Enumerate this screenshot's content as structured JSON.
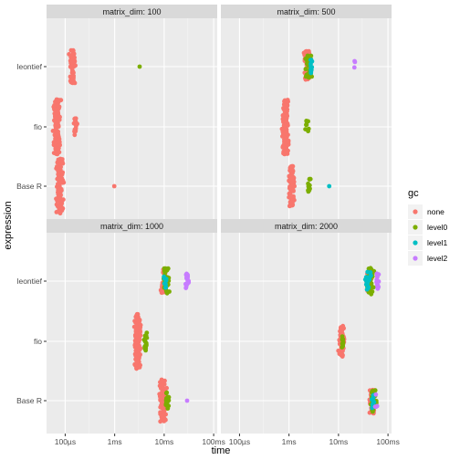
{
  "chart_data": {
    "type": "beeswarm",
    "xlabel": "time",
    "ylabel": "expression",
    "x_scale": "log10",
    "x_ticks": [
      {
        "value": 0.0001,
        "label": "100µs"
      },
      {
        "value": 0.001,
        "label": "1ms"
      },
      {
        "value": 0.01,
        "label": "10ms"
      },
      {
        "value": 0.1,
        "label": "100ms"
      }
    ],
    "categories": [
      "leontief",
      "fio",
      "Base R"
    ],
    "legend": {
      "title": "gc",
      "position": "right",
      "entries": [
        {
          "name": "none",
          "color": "#F8766D"
        },
        {
          "name": "level0",
          "color": "#7CAE00"
        },
        {
          "name": "level1",
          "color": "#00BFC4"
        },
        {
          "name": "level2",
          "color": "#C77CFF"
        }
      ]
    },
    "panels": [
      {
        "strip": "matrix_dim: 100",
        "groups": [
          {
            "category": "leontief",
            "gc": "none",
            "center": 0.00014,
            "count": 60
          },
          {
            "category": "leontief",
            "gc": "level0",
            "center": 0.0032,
            "count": 1
          },
          {
            "category": "fio",
            "gc": "none",
            "center": 6.8e-05,
            "count": 140
          },
          {
            "category": "fio",
            "gc": "none",
            "center": 0.00016,
            "count": 18
          },
          {
            "category": "Base R",
            "gc": "none",
            "center": 7.8e-05,
            "count": 120
          },
          {
            "category": "Base R",
            "gc": "none",
            "center": 0.00098,
            "count": 1
          }
        ]
      },
      {
        "strip": "matrix_dim: 500",
        "groups": [
          {
            "category": "leontief",
            "gc": "none",
            "center": 0.0023,
            "count": 55
          },
          {
            "category": "leontief",
            "gc": "level0",
            "center": 0.0025,
            "count": 30
          },
          {
            "category": "leontief",
            "gc": "level1",
            "center": 0.0028,
            "count": 10
          },
          {
            "category": "leontief",
            "gc": "level2",
            "center": 0.021,
            "count": 3
          },
          {
            "category": "fio",
            "gc": "none",
            "center": 0.00085,
            "count": 130
          },
          {
            "category": "fio",
            "gc": "level0",
            "center": 0.0023,
            "count": 8
          },
          {
            "category": "Base R",
            "gc": "none",
            "center": 0.0011,
            "count": 80
          },
          {
            "category": "Base R",
            "gc": "level0",
            "center": 0.0025,
            "count": 14
          },
          {
            "category": "Base R",
            "gc": "level1",
            "center": 0.0065,
            "count": 1
          }
        ]
      },
      {
        "strip": "matrix_dim: 1000",
        "groups": [
          {
            "category": "leontief",
            "gc": "none",
            "center": 0.0097,
            "count": 35
          },
          {
            "category": "leontief",
            "gc": "level0",
            "center": 0.011,
            "count": 40
          },
          {
            "category": "leontief",
            "gc": "level1",
            "center": 0.0105,
            "count": 8
          },
          {
            "category": "leontief",
            "gc": "level2",
            "center": 0.029,
            "count": 16
          },
          {
            "category": "fio",
            "gc": "none",
            "center": 0.0029,
            "count": 120
          },
          {
            "category": "fio",
            "gc": "level0",
            "center": 0.0042,
            "count": 20
          },
          {
            "category": "Base R",
            "gc": "none",
            "center": 0.0095,
            "count": 85
          },
          {
            "category": "Base R",
            "gc": "level0",
            "center": 0.0115,
            "count": 18
          },
          {
            "category": "Base R",
            "gc": "level2",
            "center": 0.029,
            "count": 1
          }
        ]
      },
      {
        "strip": "matrix_dim: 2000",
        "groups": [
          {
            "category": "leontief",
            "gc": "none",
            "center": 0.042,
            "count": 25
          },
          {
            "category": "leontief",
            "gc": "level0",
            "center": 0.044,
            "count": 45
          },
          {
            "category": "leontief",
            "gc": "level1",
            "center": 0.04,
            "count": 22
          },
          {
            "category": "leontief",
            "gc": "level2",
            "center": 0.062,
            "count": 14
          },
          {
            "category": "fio",
            "gc": "none",
            "center": 0.0115,
            "count": 55
          },
          {
            "category": "fio",
            "gc": "level0",
            "center": 0.012,
            "count": 8
          },
          {
            "category": "Base R",
            "gc": "none",
            "center": 0.048,
            "count": 40
          },
          {
            "category": "Base R",
            "gc": "level0",
            "center": 0.051,
            "count": 30
          },
          {
            "category": "Base R",
            "gc": "level1",
            "center": 0.05,
            "count": 10
          },
          {
            "category": "Base R",
            "gc": "level2",
            "center": 0.058,
            "count": 4
          }
        ]
      }
    ]
  }
}
